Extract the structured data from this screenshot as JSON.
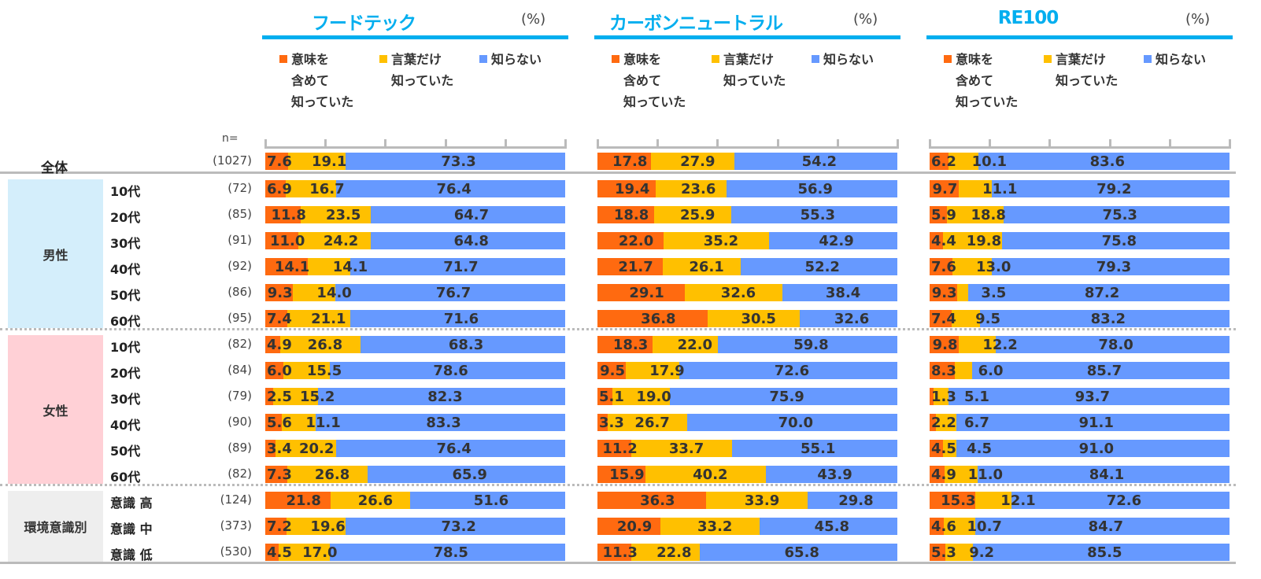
{
  "chart_data": {
    "type": "bar",
    "stacked": true,
    "orientation": "horizontal",
    "unit_label": "(%)",
    "n_label": "n=",
    "legend": [
      "意味を含めて知っていた",
      "言葉だけ知っていた",
      "知らない"
    ],
    "legend_lines": [
      [
        "意味を",
        "含めて",
        "知っていた"
      ],
      [
        "言葉だけ",
        "知っていた"
      ],
      [
        "知らない"
      ]
    ],
    "colors": [
      "#FF6A10",
      "#FFC000",
      "#6699FF"
    ],
    "groups": [
      {
        "label": "男性",
        "rows": [
          1,
          6
        ],
        "color": "#D4EEFB"
      },
      {
        "label": "女性",
        "rows": [
          7,
          12
        ],
        "color": "#FFD0D6"
      },
      {
        "label": "環境意識別",
        "rows": [
          13,
          15
        ],
        "color": "#EEEEEE"
      }
    ],
    "rows": [
      {
        "label": "全体",
        "n": "(1027)"
      },
      {
        "label": "10代",
        "n": "(72)"
      },
      {
        "label": "20代",
        "n": "(85)"
      },
      {
        "label": "30代",
        "n": "(91)"
      },
      {
        "label": "40代",
        "n": "(92)"
      },
      {
        "label": "50代",
        "n": "(86)"
      },
      {
        "label": "60代",
        "n": "(95)"
      },
      {
        "label": "10代",
        "n": "(82)"
      },
      {
        "label": "20代",
        "n": "(84)"
      },
      {
        "label": "30代",
        "n": "(79)"
      },
      {
        "label": "40代",
        "n": "(90)"
      },
      {
        "label": "50代",
        "n": "(89)"
      },
      {
        "label": "60代",
        "n": "(82)"
      },
      {
        "label": "意識 高",
        "n": "(124)"
      },
      {
        "label": "意識 中",
        "n": "(373)"
      },
      {
        "label": "意識 低",
        "n": "(530)"
      }
    ],
    "panels": [
      {
        "title": "フードテック",
        "values": [
          [
            7.6,
            19.1,
            73.3
          ],
          [
            6.9,
            16.7,
            76.4
          ],
          [
            11.8,
            23.5,
            64.7
          ],
          [
            11.0,
            24.2,
            64.8
          ],
          [
            14.1,
            14.1,
            71.7
          ],
          [
            9.3,
            14.0,
            76.7
          ],
          [
            7.4,
            21.1,
            71.6
          ],
          [
            4.9,
            26.8,
            68.3
          ],
          [
            6.0,
            15.5,
            78.6
          ],
          [
            2.5,
            15.2,
            82.3
          ],
          [
            5.6,
            11.1,
            83.3
          ],
          [
            3.4,
            20.2,
            76.4
          ],
          [
            7.3,
            26.8,
            65.9
          ],
          [
            21.8,
            26.6,
            51.6
          ],
          [
            7.2,
            19.6,
            73.2
          ],
          [
            4.5,
            17.0,
            78.5
          ]
        ]
      },
      {
        "title": "カーボンニュートラル",
        "values": [
          [
            17.8,
            27.9,
            54.2
          ],
          [
            19.4,
            23.6,
            56.9
          ],
          [
            18.8,
            25.9,
            55.3
          ],
          [
            22.0,
            35.2,
            42.9
          ],
          [
            21.7,
            26.1,
            52.2
          ],
          [
            29.1,
            32.6,
            38.4
          ],
          [
            36.8,
            30.5,
            32.6
          ],
          [
            18.3,
            22.0,
            59.8
          ],
          [
            9.5,
            17.9,
            72.6
          ],
          [
            5.1,
            19.0,
            75.9
          ],
          [
            3.3,
            26.7,
            70.0
          ],
          [
            11.2,
            33.7,
            55.1
          ],
          [
            15.9,
            40.2,
            43.9
          ],
          [
            36.3,
            33.9,
            29.8
          ],
          [
            20.9,
            33.2,
            45.8
          ],
          [
            11.3,
            22.8,
            65.8
          ]
        ]
      },
      {
        "title": "RE100",
        "values": [
          [
            6.2,
            10.1,
            83.6
          ],
          [
            9.7,
            11.1,
            79.2
          ],
          [
            5.9,
            18.8,
            75.3
          ],
          [
            4.4,
            19.8,
            75.8
          ],
          [
            7.6,
            13.0,
            79.3
          ],
          [
            9.3,
            3.5,
            87.2
          ],
          [
            7.4,
            9.5,
            83.2
          ],
          [
            9.8,
            12.2,
            78.0
          ],
          [
            8.3,
            6.0,
            85.7
          ],
          [
            1.3,
            5.1,
            93.7
          ],
          [
            2.2,
            6.7,
            91.1
          ],
          [
            4.5,
            4.5,
            91.0
          ],
          [
            4.9,
            11.0,
            84.1
          ],
          [
            15.3,
            12.1,
            72.6
          ],
          [
            4.6,
            10.7,
            84.7
          ],
          [
            5.3,
            9.2,
            85.5
          ]
        ]
      }
    ]
  }
}
